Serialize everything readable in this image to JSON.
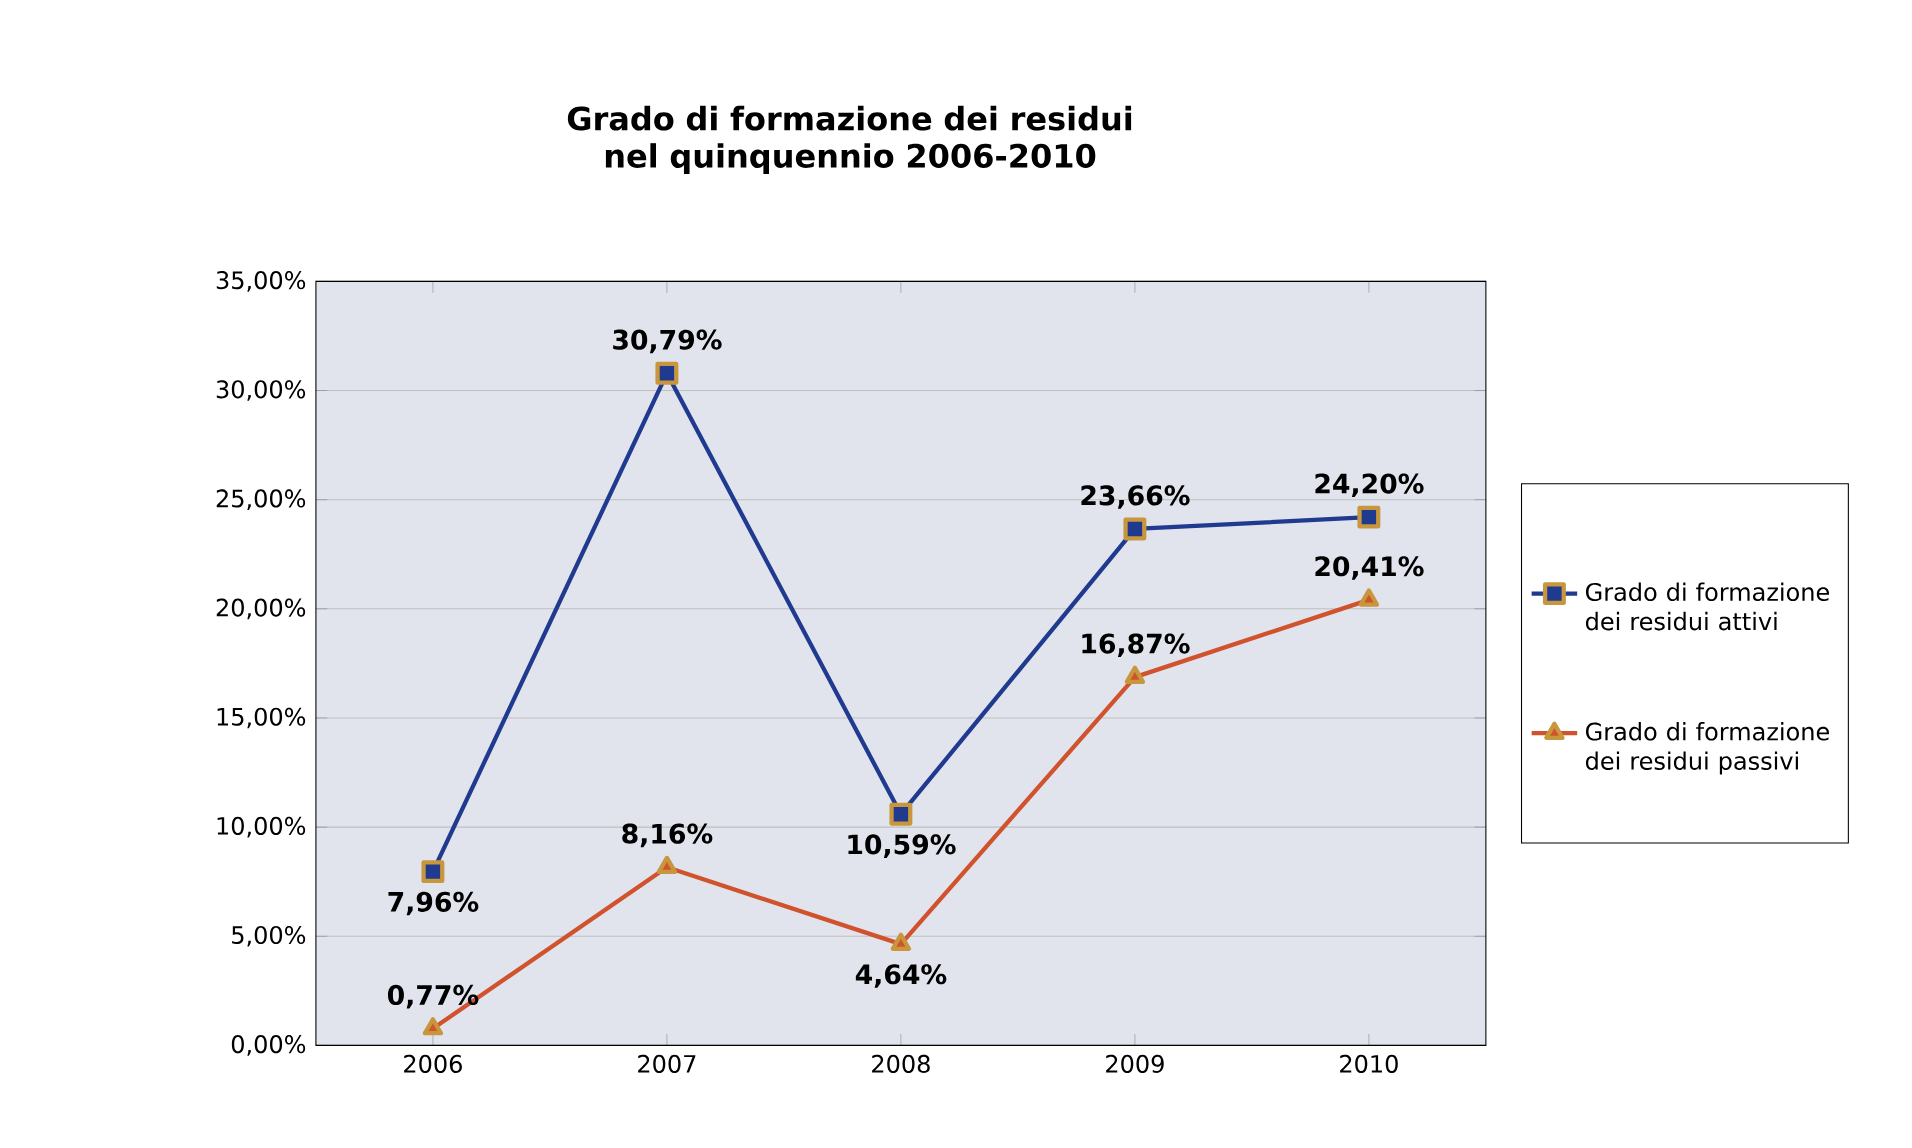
{
  "chart_data": {
    "type": "line",
    "title": "Grado di formazione dei residui\nnel quinquennio 2006-2010",
    "categories": [
      "2006",
      "2007",
      "2008",
      "2009",
      "2010"
    ],
    "series": [
      {
        "name": "Grado di formazione dei residui attivi",
        "color": "#1f3a8f",
        "marker": "square",
        "values": [
          7.96,
          30.79,
          10.59,
          23.66,
          24.2
        ],
        "value_labels": [
          "7,96%",
          "30,79%",
          "10,59%",
          "23,66%",
          "24,20%"
        ]
      },
      {
        "name": "Grado di formazione dei residui passivi",
        "color": "#d0532e",
        "marker": "triangle",
        "values": [
          0.77,
          8.16,
          4.64,
          16.87,
          20.41
        ],
        "value_labels": [
          "0,77%",
          "8,16%",
          "4,64%",
          "16,87%",
          "20,41%"
        ]
      }
    ],
    "ylim": [
      0,
      35
    ],
    "yticks": [
      {
        "value": 0,
        "label": "0,00%"
      },
      {
        "value": 5,
        "label": "5,00%"
      },
      {
        "value": 10,
        "label": "10,00%"
      },
      {
        "value": 15,
        "label": "15,00%"
      },
      {
        "value": 20,
        "label": "20,00%"
      },
      {
        "value": 25,
        "label": "25,00%"
      },
      {
        "value": 30,
        "label": "30,00%"
      },
      {
        "value": 35,
        "label": "35,00%"
      }
    ],
    "grid": "y",
    "legend": "right"
  }
}
